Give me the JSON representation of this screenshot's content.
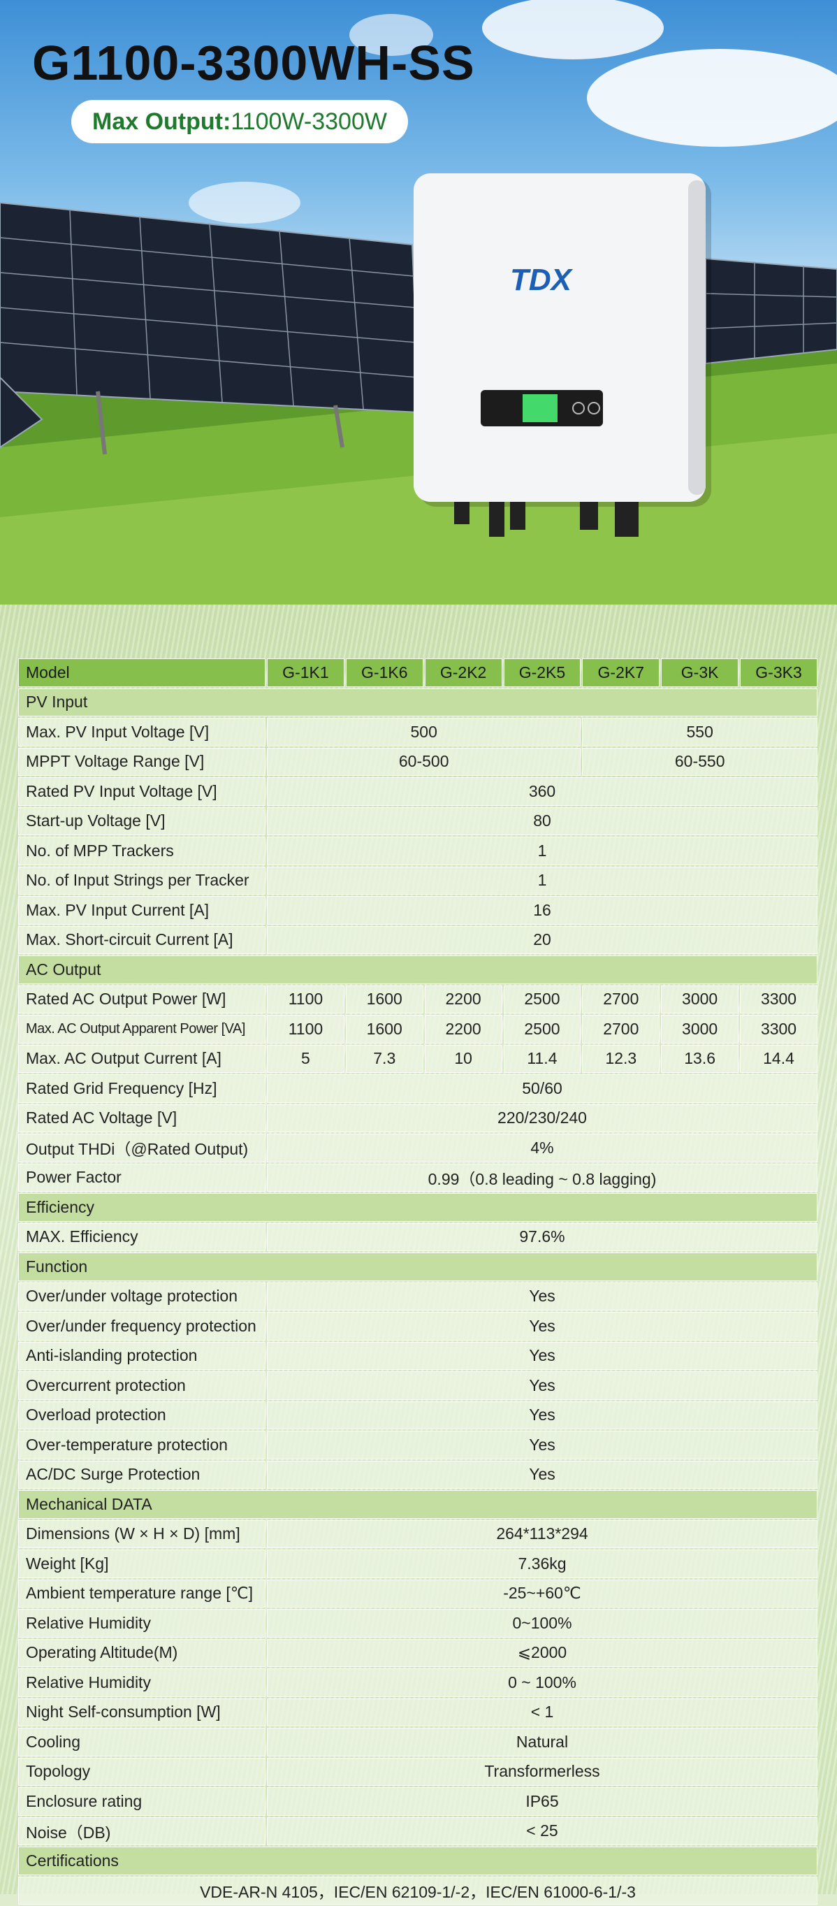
{
  "header": {
    "title": "G1100-3300WH-SS",
    "badge_label": "Max Output:",
    "badge_value": "1100W-3300W",
    "logo": "TDX"
  },
  "table": {
    "columns": [
      "Model",
      "G-1K1",
      "G-1K6",
      "G-2K2",
      "G-2K5",
      "G-2K7",
      "G-3K",
      "G-3K3"
    ],
    "rows": [
      {
        "section": "PV Input"
      },
      {
        "label": "Max. PV Input Voltage [V]",
        "cells": [
          "500",
          "550"
        ]
      },
      {
        "label": "MPPT Voltage Range [V]",
        "cells": [
          "60-500",
          "60-550"
        ]
      },
      {
        "label": "Rated PV Input Voltage [V]",
        "cells": [
          "360"
        ]
      },
      {
        "label": "Start-up Voltage [V]",
        "cells": [
          "80"
        ]
      },
      {
        "label": "No. of MPP Trackers",
        "cells": [
          "1"
        ]
      },
      {
        "label": "No. of Input Strings per Tracker",
        "cells": [
          "1"
        ]
      },
      {
        "label": "Max. PV Input Current [A]",
        "cells": [
          "16"
        ]
      },
      {
        "label": "Max. Short-circuit Current [A]",
        "cells": [
          "20"
        ]
      },
      {
        "section": "AC Output"
      },
      {
        "label": "Rated AC Output Power [W]",
        "cells": [
          "1100",
          "1600",
          "2200",
          "2500",
          "2700",
          "3000",
          "3300"
        ]
      },
      {
        "label": "Max. AC Output Apparent Power [VA]",
        "cells": [
          "1100",
          "1600",
          "2200",
          "2500",
          "2700",
          "3000",
          "3300"
        ]
      },
      {
        "label": "Max. AC Output Current [A]",
        "cells": [
          "5",
          "7.3",
          "10",
          "11.4",
          "12.3",
          "13.6",
          "14.4"
        ]
      },
      {
        "label": "Rated Grid Frequency [Hz]",
        "cells": [
          "50/60"
        ]
      },
      {
        "label": "Rated AC Voltage [V]",
        "cells": [
          "220/230/240"
        ]
      },
      {
        "label": "Output THDi（@Rated Output)",
        "cells": [
          "4%"
        ]
      },
      {
        "label": "Power Factor",
        "cells": [
          "0.99（0.8 leading ~ 0.8 lagging)"
        ]
      },
      {
        "section": "Efficiency"
      },
      {
        "label": "MAX. Efficiency",
        "cells": [
          "97.6%"
        ]
      },
      {
        "section": "Function"
      },
      {
        "label": "Over/under voltage protection",
        "cells": [
          "Yes"
        ]
      },
      {
        "label": "Over/under frequency protection",
        "cells": [
          "Yes"
        ]
      },
      {
        "label": "Anti-islanding protection",
        "cells": [
          "Yes"
        ]
      },
      {
        "label": "Overcurrent protection",
        "cells": [
          "Yes"
        ]
      },
      {
        "label": "Overload protection",
        "cells": [
          "Yes"
        ]
      },
      {
        "label": "Over-temperature protection",
        "cells": [
          "Yes"
        ]
      },
      {
        "label": "AC/DC Surge Protection",
        "cells": [
          "Yes"
        ]
      },
      {
        "section": "Mechanical DATA"
      },
      {
        "label": "Dimensions (W × H × D) [mm]",
        "cells": [
          "264*113*294"
        ]
      },
      {
        "label": "Weight [Kg]",
        "cells": [
          "7.36kg"
        ]
      },
      {
        "label": "Ambient temperature range [℃]",
        "cells": [
          "-25~+60℃"
        ]
      },
      {
        "label": "Relative Humidity",
        "cells": [
          "0~100%"
        ]
      },
      {
        "label": "Operating Altitude(M)",
        "cells": [
          "⩽2000"
        ]
      },
      {
        "label": "Relative Humidity",
        "cells": [
          "0 ~ 100%"
        ]
      },
      {
        "label": "Night Self-consumption [W]",
        "cells": [
          "< 1"
        ]
      },
      {
        "label": "Cooling",
        "cells": [
          "Natural"
        ]
      },
      {
        "label": "Topology",
        "cells": [
          "Transformerless"
        ]
      },
      {
        "label": "Enclosure rating",
        "cells": [
          "IP65"
        ]
      },
      {
        "label": "Noise（DB)",
        "cells": [
          "< 25"
        ]
      },
      {
        "section": "Certifications"
      },
      {
        "cells": [
          "VDE-AR-N 4105，IEC/EN 62109-1/-2，IEC/EN 61000-6-1/-3"
        ]
      }
    ]
  }
}
